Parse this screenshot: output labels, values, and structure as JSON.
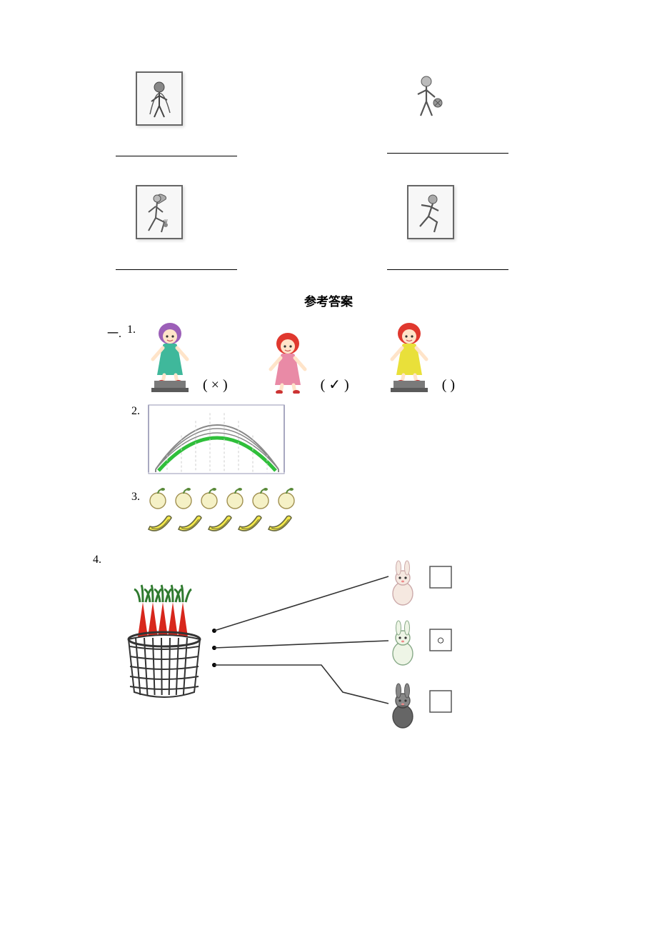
{
  "answer_key_title": "参考答案",
  "section_label": "一.",
  "q1": {
    "number": "1.",
    "girls": [
      {
        "hair_color": "#9c5fb8",
        "dress_color": "#3fb89b",
        "pedestal": true,
        "mark": "( × )"
      },
      {
        "hair_color": "#e0382e",
        "dress_color": "#e98aa6",
        "pedestal": false,
        "mark": "( ✓ )"
      },
      {
        "hair_color": "#e0382e",
        "dress_color": "#e9e03a",
        "pedestal": true,
        "mark": "(   )"
      }
    ]
  },
  "q2": {
    "number": "2.",
    "highlight_color": "#2fbf3a",
    "frame_color": "#a8a8c0",
    "arc_color": "#888"
  },
  "q3": {
    "number": "3.",
    "apples": 6,
    "bananas": 5,
    "apple_color": "#f5f1c6",
    "apple_stem": "#5a8a3a",
    "banana_fill": "#f4e94a",
    "banana_stroke": "#6a6a40"
  },
  "q4": {
    "number": "4.",
    "basket_color": "#333",
    "carrot_color": "#d8271c",
    "carrot_top_color": "#2f7a2f",
    "rabbits": [
      {
        "body": "#f5e8e0",
        "outline": "#caa",
        "box_content": ""
      },
      {
        "body": "#eef5e6",
        "outline": "#8a8",
        "box_content": "○"
      },
      {
        "body": "#888",
        "outline": "#555",
        "box_content": ""
      }
    ]
  },
  "activities": {
    "jump_rope": {
      "id": "jump-rope-icon"
    },
    "basketball": {
      "id": "basketball-icon"
    },
    "shuttlecock": {
      "id": "shuttlecock-icon"
    },
    "running": {
      "id": "running-icon"
    }
  }
}
